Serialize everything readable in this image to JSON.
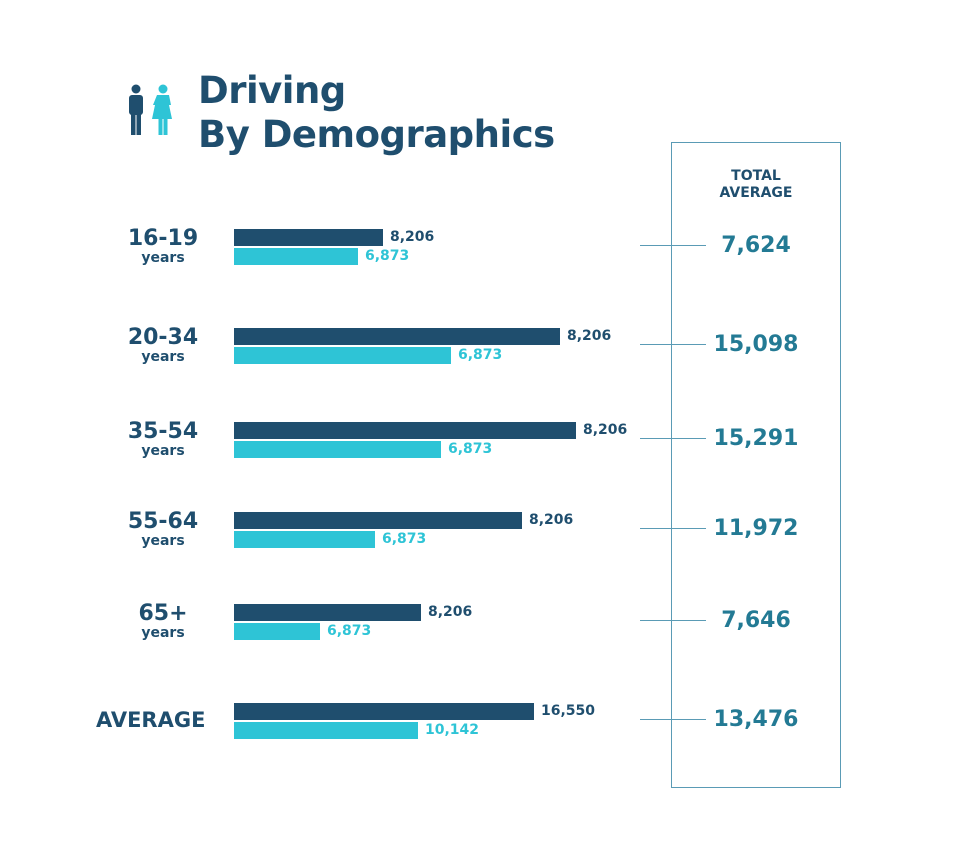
{
  "title_line1": "Driving",
  "title_line2": "By Demographics",
  "icons": [
    "male-person-icon",
    "female-person-icon"
  ],
  "colors": {
    "male": "#1f4e6e",
    "female": "#2ec4d6",
    "total": "#237a94",
    "box": "#5a9bb5"
  },
  "chart_data": {
    "type": "bar",
    "orientation": "horizontal",
    "categories": [
      {
        "range": "16-19",
        "unit": "years"
      },
      {
        "range": "20-34",
        "unit": "years"
      },
      {
        "range": "35-54",
        "unit": "years"
      },
      {
        "range": "55-64",
        "unit": "years"
      },
      {
        "range": "65+",
        "unit": "years"
      },
      {
        "range": "AVERAGE",
        "unit": ""
      }
    ],
    "series": [
      {
        "values": [
          "8,206",
          "8,206",
          "8,206",
          "8,206",
          "8,206",
          "16,550"
        ],
        "color": "#1f4e6e"
      },
      {
        "values": [
          "6,873",
          "6,873",
          "6,873",
          "6,873",
          "6,873",
          "10,142"
        ],
        "color": "#2ec4d6"
      }
    ],
    "total_average_header": [
      "TOTAL",
      "AVERAGE"
    ],
    "total_average": [
      "7,624",
      "15,098",
      "15,291",
      "11,972",
      "7,646",
      "13,476"
    ]
  }
}
